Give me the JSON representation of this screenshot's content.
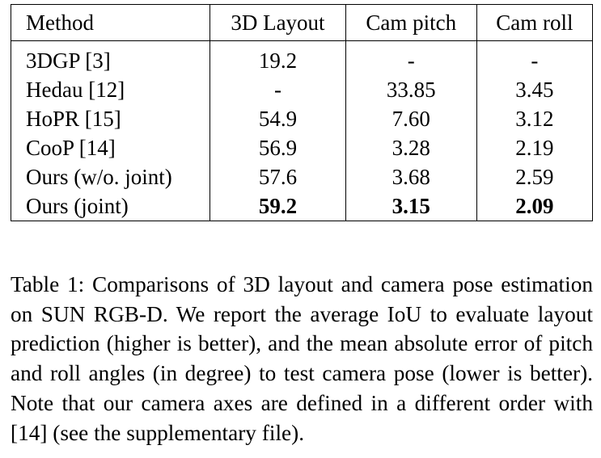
{
  "table": {
    "headers": [
      "Method",
      "3D Layout",
      "Cam pitch",
      "Cam roll"
    ],
    "rows": [
      {
        "method": "3DGP [3]",
        "layout": "19.2",
        "pitch": "-",
        "roll": "-"
      },
      {
        "method": "Hedau [12]",
        "layout": "-",
        "pitch": "33.85",
        "roll": "3.45"
      },
      {
        "method": "HoPR [15]",
        "layout": "54.9",
        "pitch": "7.60",
        "roll": "3.12"
      },
      {
        "method": "CooP [14]",
        "layout": "56.9",
        "pitch": "3.28",
        "roll": "2.19"
      },
      {
        "method": "Ours (w/o. joint)",
        "layout": "57.6",
        "pitch": "3.68",
        "roll": "2.59"
      },
      {
        "method": "Ours (joint)",
        "layout": "59.2",
        "pitch": "3.15",
        "roll": "2.09",
        "bold": true
      }
    ]
  },
  "caption": "Table 1: Comparisons of 3D layout and camera pose estimation on SUN RGB-D. We report the average IoU to evaluate layout prediction (higher is better), and the mean absolute error of pitch and roll angles (in degree) to test camera pose (lower is better). Note that our camera axes are defined in a different order with [14] (see the supplementary file)."
}
